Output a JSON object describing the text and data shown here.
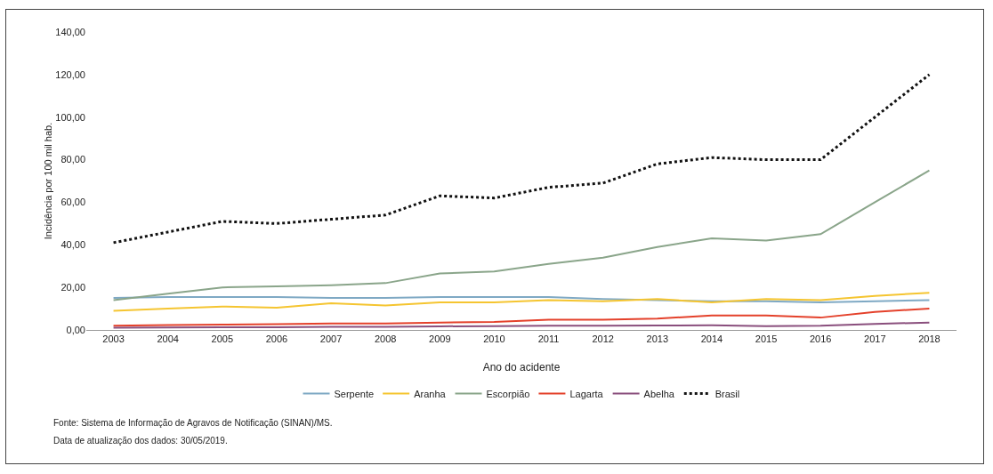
{
  "chart_data": {
    "type": "line",
    "xlabel": "Ano do acidente",
    "ylabel": "Incidência por 100 mil hab.",
    "categories": [
      "2003",
      "2004",
      "2005",
      "2006",
      "2007",
      "2008",
      "2009",
      "2010",
      "2011",
      "2012",
      "2013",
      "2014",
      "2015",
      "2016",
      "2017",
      "2018"
    ],
    "series": [
      {
        "name": "Serpente",
        "color": "#7fa9c4",
        "values": [
          15,
          15.5,
          15.5,
          15.5,
          15,
          15,
          15.5,
          15.5,
          15.5,
          14.5,
          14,
          13.5,
          13.5,
          13,
          13.5,
          14
        ]
      },
      {
        "name": "Aranha",
        "color": "#f5c531",
        "values": [
          9,
          10,
          11,
          10.5,
          12.5,
          11.5,
          13,
          13,
          14,
          13.5,
          14.5,
          13,
          14.5,
          14,
          16,
          17.5
        ]
      },
      {
        "name": "Escorpião",
        "color": "#8aa58a",
        "values": [
          14,
          17,
          20,
          20.5,
          21,
          22,
          26.5,
          27.5,
          31,
          34,
          39,
          43,
          42,
          45,
          60,
          75
        ]
      },
      {
        "name": "Lagarta",
        "color": "#e4412b",
        "values": [
          2,
          2.3,
          2.5,
          2.7,
          3,
          3,
          3.5,
          3.8,
          4.8,
          4.8,
          5.3,
          6.8,
          6.8,
          5.8,
          8.5,
          10
        ]
      },
      {
        "name": "Abelha",
        "color": "#8a4f7d",
        "values": [
          1,
          1.2,
          1.3,
          1.3,
          1.5,
          1.5,
          1.7,
          1.8,
          2,
          2,
          2.1,
          2.2,
          1.8,
          2,
          2.8,
          3.5
        ]
      },
      {
        "name": "Brasil",
        "color": "#111111",
        "line_style": "dotted",
        "values": [
          41,
          46,
          51,
          50,
          52,
          54,
          63,
          62,
          67,
          69,
          78,
          81,
          80,
          80,
          100,
          120
        ]
      }
    ],
    "ylim": [
      0,
      140
    ],
    "yticks": [
      {
        "value": 0,
        "label": "0,00"
      },
      {
        "value": 20,
        "label": "20,00"
      },
      {
        "value": 40,
        "label": "40,00"
      },
      {
        "value": 60,
        "label": "60,00"
      },
      {
        "value": 80,
        "label": "80,00"
      },
      {
        "value": 100,
        "label": "100,00"
      },
      {
        "value": 120,
        "label": "120,00"
      },
      {
        "value": 140,
        "label": "140,00"
      }
    ],
    "grid": false,
    "legend": "bottom",
    "marker": "none",
    "line_style": "solid",
    "annotations": [
      "Fonte: Sistema de Informação de Agravos de Notificação (SINAN)/MS.",
      "Data de atualização dos dados: 30/05/2019."
    ]
  }
}
